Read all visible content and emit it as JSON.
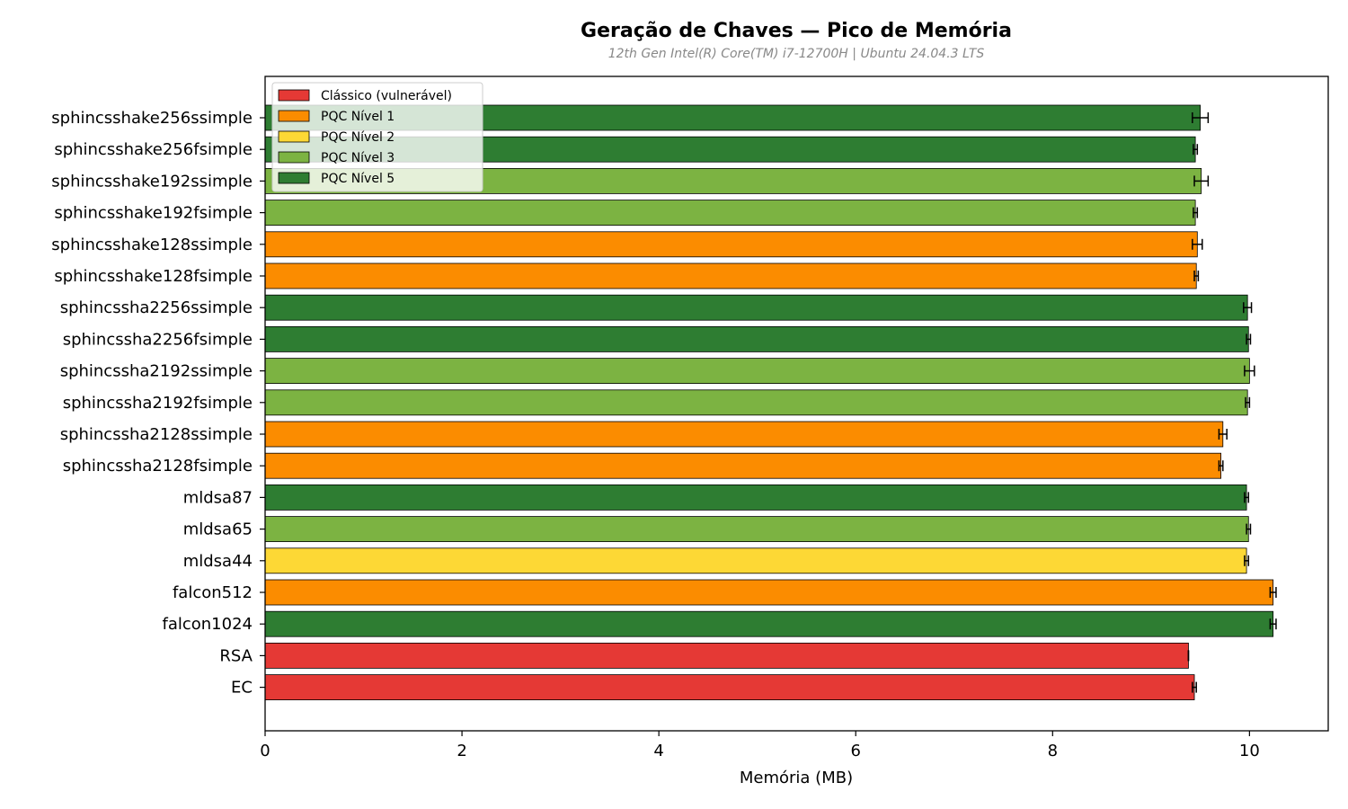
{
  "chart_data": {
    "type": "bar",
    "orientation": "horizontal",
    "title": "Geração de Chaves — Pico de Memória",
    "subtitle": "12th Gen Intel(R) Core(TM) i7-12700H | Ubuntu 24.04.3 LTS",
    "xlabel": "Memória (MB)",
    "ylabel": "",
    "xlim": [
      0,
      10.8
    ],
    "xticks": [
      0,
      2,
      4,
      6,
      8,
      10
    ],
    "grid": false,
    "legend_position": "top-left",
    "legend": [
      {
        "label": "Clássico (vulnerável)",
        "color": "#e53935"
      },
      {
        "label": "PQC Nível 1",
        "color": "#fb8c00"
      },
      {
        "label": "PQC Nível 2",
        "color": "#fdd835"
      },
      {
        "label": "PQC Nível 3",
        "color": "#7cb342"
      },
      {
        "label": "PQC Nível 5",
        "color": "#2e7d32"
      }
    ],
    "bars": [
      {
        "label": "sphincsshake256ssimple",
        "value": 9.5,
        "error": 0.08,
        "group": 4
      },
      {
        "label": "sphincsshake256fsimple",
        "value": 9.45,
        "error": 0.02,
        "group": 4
      },
      {
        "label": "sphincsshake192ssimple",
        "value": 9.51,
        "error": 0.07,
        "group": 3
      },
      {
        "label": "sphincsshake192fsimple",
        "value": 9.45,
        "error": 0.02,
        "group": 3
      },
      {
        "label": "sphincsshake128ssimple",
        "value": 9.47,
        "error": 0.05,
        "group": 1
      },
      {
        "label": "sphincsshake128fsimple",
        "value": 9.46,
        "error": 0.02,
        "group": 1
      },
      {
        "label": "sphincssha2256ssimple",
        "value": 9.98,
        "error": 0.04,
        "group": 4
      },
      {
        "label": "sphincssha2256fsimple",
        "value": 9.99,
        "error": 0.02,
        "group": 4
      },
      {
        "label": "sphincssha2192ssimple",
        "value": 10.0,
        "error": 0.05,
        "group": 3
      },
      {
        "label": "sphincssha2192fsimple",
        "value": 9.98,
        "error": 0.02,
        "group": 3
      },
      {
        "label": "sphincssha2128ssimple",
        "value": 9.73,
        "error": 0.04,
        "group": 1
      },
      {
        "label": "sphincssha2128fsimple",
        "value": 9.71,
        "error": 0.02,
        "group": 1
      },
      {
        "label": "mldsa87",
        "value": 9.97,
        "error": 0.02,
        "group": 4
      },
      {
        "label": "mldsa65",
        "value": 9.99,
        "error": 0.02,
        "group": 3
      },
      {
        "label": "mldsa44",
        "value": 9.97,
        "error": 0.02,
        "group": 2
      },
      {
        "label": "falcon512",
        "value": 10.24,
        "error": 0.03,
        "group": 1
      },
      {
        "label": "falcon1024",
        "value": 10.24,
        "error": 0.03,
        "group": 4
      },
      {
        "label": "RSA",
        "value": 9.38,
        "error": 0.0,
        "group": 0
      },
      {
        "label": "EC",
        "value": 9.44,
        "error": 0.02,
        "group": 0
      }
    ]
  }
}
